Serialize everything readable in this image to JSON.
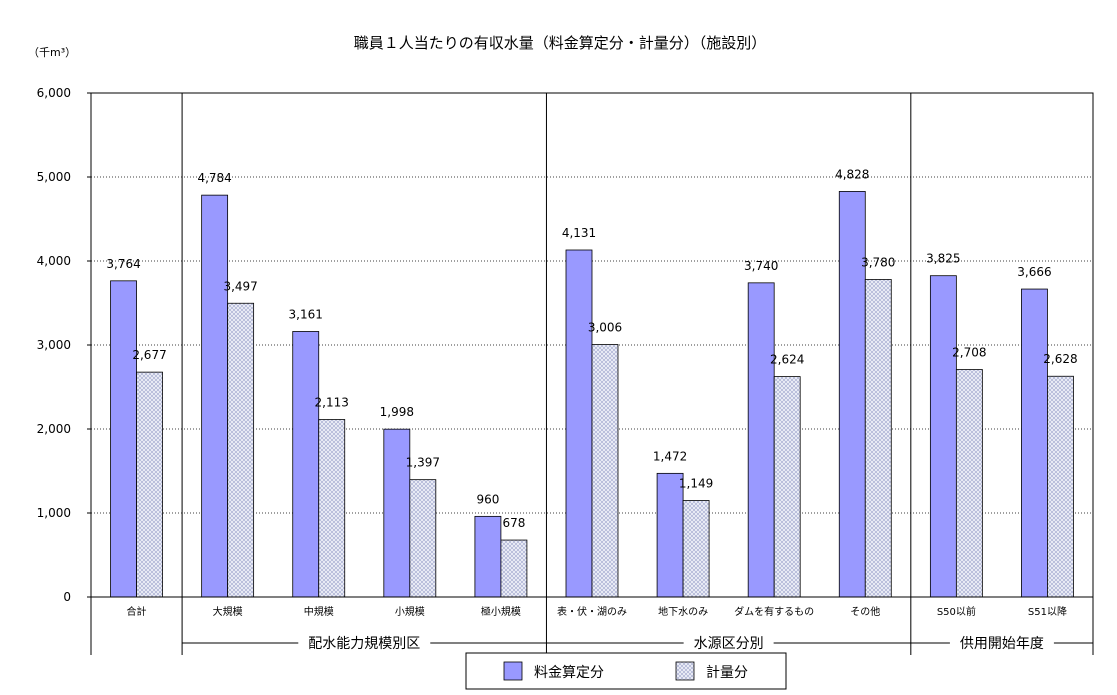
{
  "chart_data": {
    "type": "bar",
    "title": "職員１人当たりの有収水量（料金算定分・計量分）（施設別）",
    "unit_label": "（千m³）",
    "ylim": [
      0,
      6000
    ],
    "yticks": [
      0,
      1000,
      2000,
      3000,
      4000,
      5000,
      6000
    ],
    "ytick_labels": [
      "0",
      "1,000",
      "2,000",
      "3,000",
      "4,000",
      "5,000",
      "6,000"
    ],
    "grid": true,
    "categories": [
      "合計",
      "大規模",
      "中規模",
      "小規模",
      "極小規模",
      "表・伏・湖のみ",
      "地下水のみ",
      "ダムを有するもの",
      "その他",
      "S50以前",
      "S51以降"
    ],
    "series": [
      {
        "name": "料金算定分",
        "color": "#9999ff",
        "values": [
          3764,
          4784,
          3161,
          1998,
          960,
          4131,
          1472,
          3740,
          4828,
          3825,
          3666
        ],
        "labels": [
          "3,764",
          "4,784",
          "3,161",
          "1,998",
          "960",
          "4,131",
          "1,472",
          "3,740",
          "4,828",
          "3,825",
          "3,666"
        ]
      },
      {
        "name": "計量分",
        "color": "#dde0f0",
        "values": [
          2677,
          3497,
          2113,
          1397,
          678,
          3006,
          1149,
          2624,
          3780,
          2708,
          2628
        ],
        "labels": [
          "2,677",
          "3,497",
          "2,113",
          "1,397",
          "678",
          "3,006",
          "1,149",
          "2,624",
          "3,780",
          "2,708",
          "2,628"
        ]
      }
    ],
    "groups": [
      {
        "label": "",
        "start": 0,
        "end": 0
      },
      {
        "label": "配水能力規模別区",
        "start": 1,
        "end": 4
      },
      {
        "label": "水源区分別",
        "start": 5,
        "end": 8
      },
      {
        "label": "供用開始年度",
        "start": 9,
        "end": 10
      }
    ],
    "legend_position": "bottom"
  }
}
